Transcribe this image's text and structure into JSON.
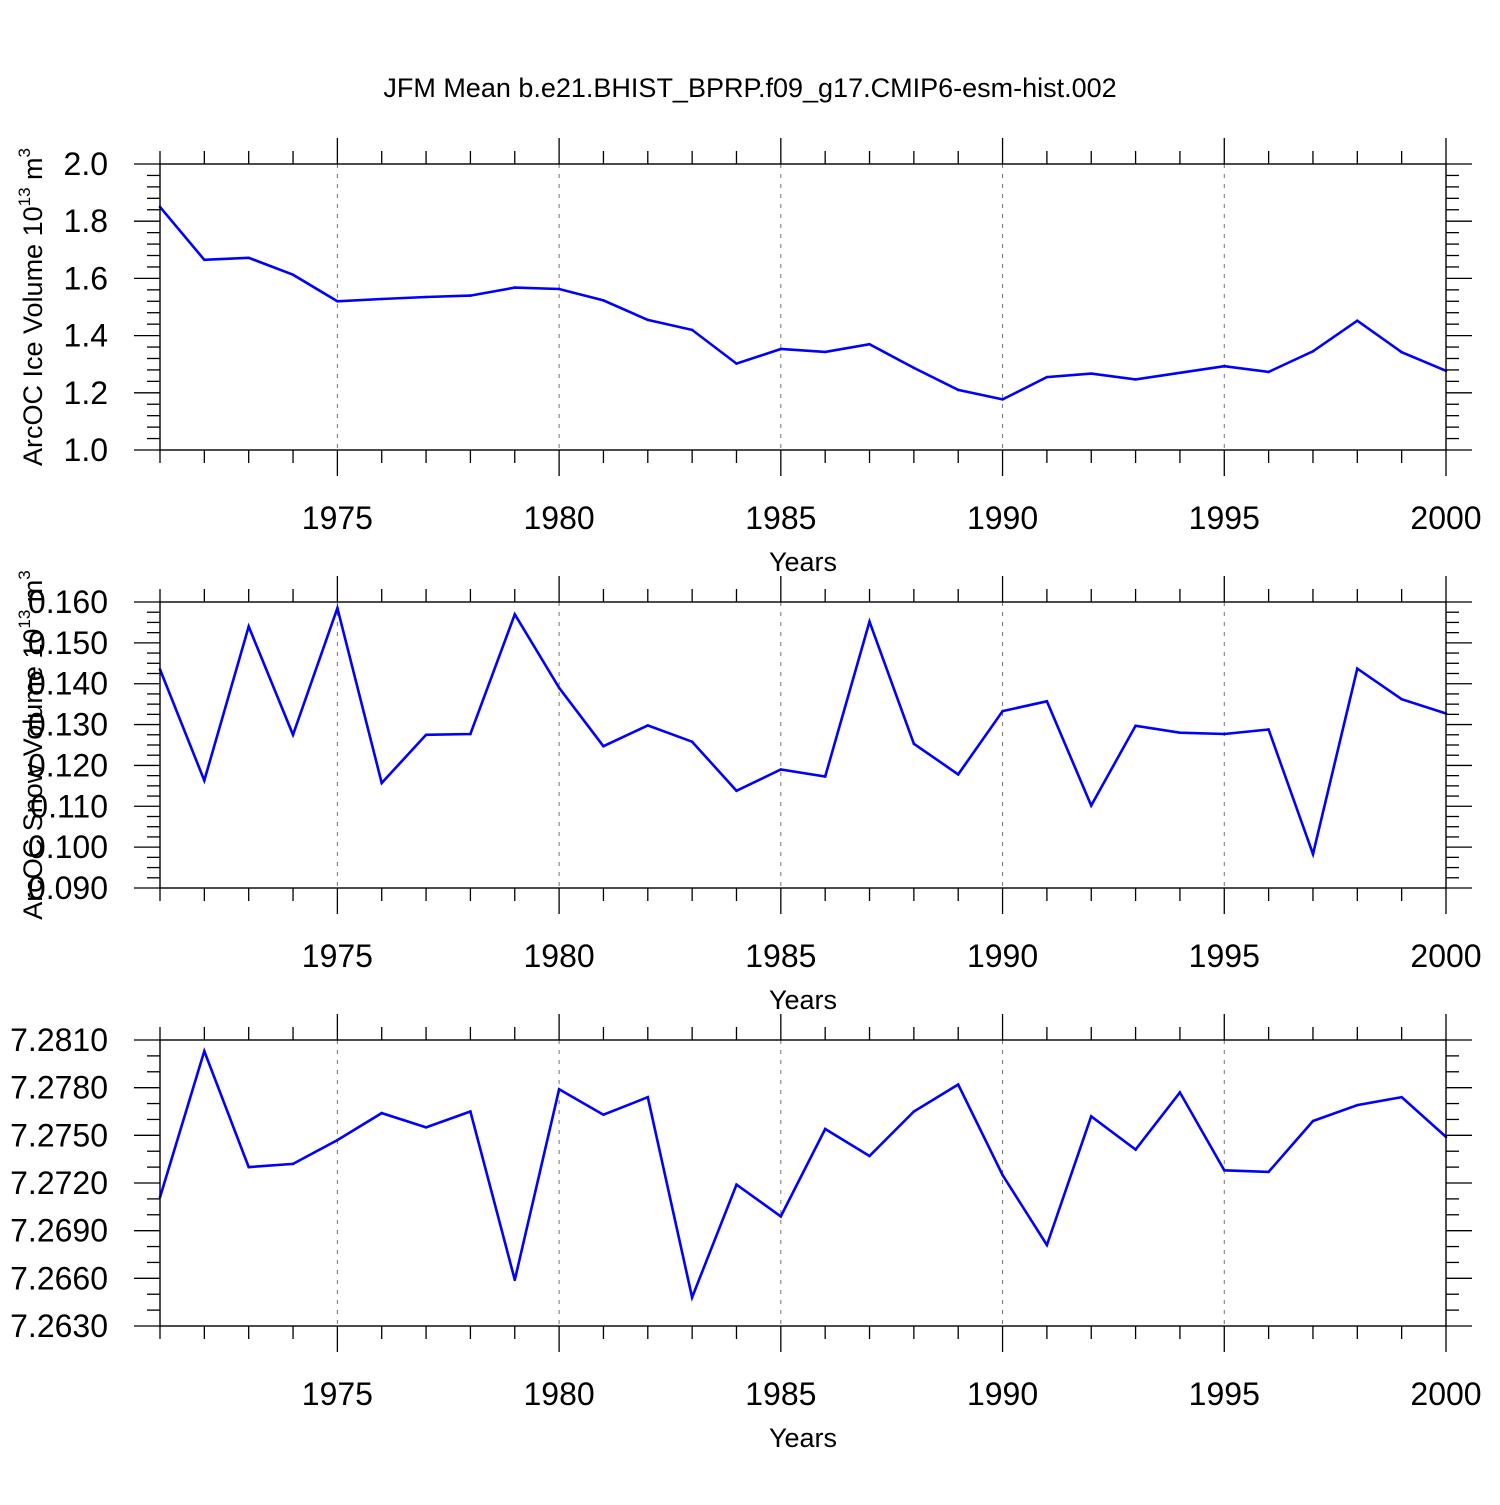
{
  "title": "JFM Mean b.e21.BHIST_BPRP.f09_g17.CMIP6-esm-hist.002",
  "chart_data": [
    {
      "type": "line",
      "title": "JFM Mean b.e21.BHIST_BPRP.f09_g17.CMIP6-esm-hist.002",
      "xlabel": "Years",
      "ylabel": "ArcOC Ice Volume 10",
      "ylabel_exponent": "13",
      "ylabel_unit": "m",
      "ylabel_unit_exponent": "3",
      "xlim": [
        1971,
        2000
      ],
      "ylim": [
        1.0,
        2.0
      ],
      "yticks": [
        "1.0",
        "1.2",
        "1.4",
        "1.6",
        "1.8",
        "2.0"
      ],
      "xticks": [
        "1975",
        "1980",
        "1985",
        "1990",
        "1995",
        "2000"
      ],
      "line_color": "#0000ff",
      "x": [
        1971,
        1972,
        1973,
        1974,
        1975,
        1976,
        1977,
        1978,
        1979,
        1980,
        1981,
        1982,
        1983,
        1984,
        1985,
        1986,
        1987,
        1988,
        1989,
        1990,
        1991,
        1992,
        1993,
        1994,
        1995,
        1996,
        1997,
        1998,
        1999,
        2000
      ],
      "values": [
        1.85,
        1.665,
        1.672,
        1.613,
        1.52,
        1.528,
        1.535,
        1.54,
        1.568,
        1.563,
        1.523,
        1.455,
        1.42,
        1.302,
        1.353,
        1.343,
        1.37,
        1.287,
        1.21,
        1.177,
        1.255,
        1.267,
        1.247,
        1.27,
        1.293,
        1.273,
        1.345,
        1.452,
        1.342,
        1.277
      ]
    },
    {
      "type": "line",
      "xlabel": "Years",
      "ylabel": "ArcOC Snow Volume 10",
      "ylabel_exponent": "13",
      "ylabel_unit": "m",
      "ylabel_unit_exponent": "3",
      "xlim": [
        1971,
        2000
      ],
      "ylim": [
        0.09,
        0.16
      ],
      "yticks": [
        "0.090",
        "0.100",
        "0.110",
        "0.120",
        "0.130",
        "0.140",
        "0.150",
        "0.160"
      ],
      "xticks": [
        "1975",
        "1980",
        "1985",
        "1990",
        "1995",
        "2000"
      ],
      "line_color": "#0000ff",
      "x": [
        1971,
        1972,
        1973,
        1974,
        1975,
        1976,
        1977,
        1978,
        1979,
        1980,
        1981,
        1982,
        1983,
        1984,
        1985,
        1986,
        1987,
        1988,
        1989,
        1990,
        1991,
        1992,
        1993,
        1994,
        1995,
        1996,
        1997,
        1998,
        1999,
        2000
      ],
      "values": [
        0.1435,
        0.1163,
        0.154,
        0.1275,
        0.1585,
        0.1157,
        0.1275,
        0.1277,
        0.157,
        0.139,
        0.1247,
        0.1298,
        0.1258,
        0.1138,
        0.119,
        0.1173,
        0.1552,
        0.1253,
        0.1178,
        0.1333,
        0.1357,
        0.1102,
        0.1297,
        0.128,
        0.1277,
        0.1288,
        0.0983,
        0.1437,
        0.1362,
        0.1327
      ]
    },
    {
      "type": "line",
      "xlabel": "Years",
      "xlim": [
        1971,
        2000
      ],
      "ylim": [
        7.263,
        7.281
      ],
      "yticks": [
        "7.2630",
        "7.2660",
        "7.2690",
        "7.2720",
        "7.2750",
        "7.2780",
        "7.2810"
      ],
      "xticks": [
        "1975",
        "1980",
        "1985",
        "1990",
        "1995",
        "2000"
      ],
      "line_color": "#0000ff",
      "x": [
        1971,
        1972,
        1973,
        1974,
        1975,
        1976,
        1977,
        1978,
        1979,
        1980,
        1981,
        1982,
        1983,
        1984,
        1985,
        1986,
        1987,
        1988,
        1989,
        1990,
        1991,
        1992,
        1993,
        1994,
        1995,
        1996,
        1997,
        1998,
        1999,
        2000
      ],
      "values": [
        7.2711,
        7.2803,
        7.273,
        7.2732,
        7.2747,
        7.2764,
        7.2755,
        7.2765,
        7.2659,
        7.2779,
        7.2763,
        7.2774,
        7.2648,
        7.2719,
        7.2699,
        7.2754,
        7.2737,
        7.2765,
        7.2782,
        7.2725,
        7.2681,
        7.2762,
        7.2741,
        7.2777,
        7.2728,
        7.2727,
        7.2759,
        7.2769,
        7.2774,
        7.2749
      ]
    }
  ]
}
